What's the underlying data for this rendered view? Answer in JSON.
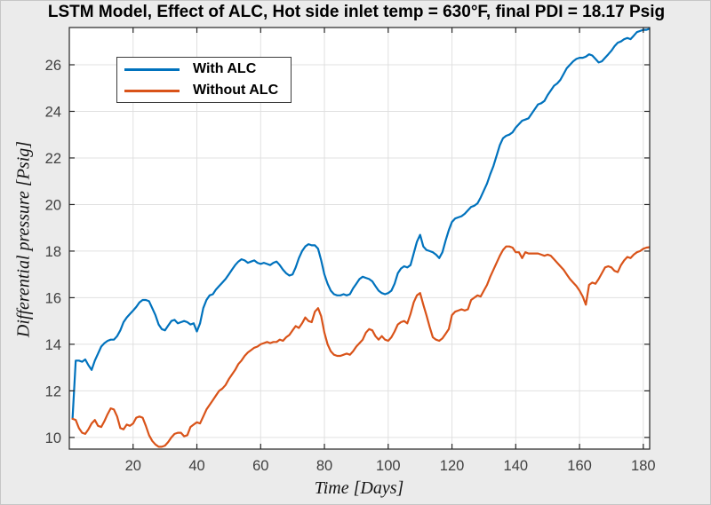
{
  "figure": {
    "background_color": "#ebebeb",
    "plot_background_color": "#ffffff",
    "grid_color": "#e0e0e0",
    "box_color": "#262626",
    "tick_label_color": "#3f3f3f"
  },
  "chart_data": {
    "type": "line",
    "title": "LSTM Model, Effect of ALC, Hot side inlet temp = 630°F, final PDI = 18.17 Psig",
    "xlabel": "Time [Days]",
    "ylabel": "Differential pressure [Psig]",
    "xlim": [
      0,
      182
    ],
    "ylim": [
      9.5,
      27.6
    ],
    "xticks": [
      20,
      40,
      60,
      80,
      100,
      120,
      140,
      160,
      180
    ],
    "yticks": [
      10,
      12,
      14,
      16,
      18,
      20,
      22,
      24,
      26
    ],
    "grid": true,
    "legend": {
      "position": "top-left",
      "border": true
    },
    "x_start_day": 1,
    "x_end_day": 182,
    "final_pdi_psig": 18.17,
    "series": [
      {
        "name": "With ALC",
        "color": "#0072BD",
        "y": [
          10.8,
          13.3,
          13.3,
          13.25,
          13.35,
          13.1,
          12.9,
          13.3,
          13.6,
          13.9,
          14.05,
          14.15,
          14.2,
          14.2,
          14.35,
          14.6,
          14.95,
          15.15,
          15.3,
          15.45,
          15.6,
          15.8,
          15.9,
          15.9,
          15.85,
          15.55,
          15.25,
          14.85,
          14.65,
          14.6,
          14.8,
          15.0,
          15.05,
          14.9,
          14.95,
          15.0,
          14.95,
          14.85,
          14.9,
          14.55,
          14.9,
          15.55,
          15.9,
          16.1,
          16.15,
          16.35,
          16.5,
          16.65,
          16.8,
          17.0,
          17.2,
          17.4,
          17.55,
          17.65,
          17.6,
          17.5,
          17.55,
          17.6,
          17.5,
          17.45,
          17.5,
          17.45,
          17.4,
          17.5,
          17.55,
          17.4,
          17.2,
          17.05,
          16.95,
          17.0,
          17.3,
          17.7,
          18.0,
          18.2,
          18.3,
          18.25,
          18.25,
          18.1,
          17.6,
          17.0,
          16.6,
          16.3,
          16.15,
          16.1,
          16.1,
          16.15,
          16.1,
          16.15,
          16.4,
          16.6,
          16.8,
          16.9,
          16.85,
          16.8,
          16.7,
          16.5,
          16.3,
          16.2,
          16.15,
          16.2,
          16.3,
          16.6,
          17.05,
          17.25,
          17.35,
          17.3,
          17.4,
          17.9,
          18.4,
          18.7,
          18.2,
          18.05,
          18.0,
          17.95,
          17.85,
          17.7,
          17.95,
          18.45,
          18.9,
          19.25,
          19.4,
          19.45,
          19.5,
          19.6,
          19.75,
          19.9,
          19.95,
          20.05,
          20.3,
          20.6,
          20.9,
          21.3,
          21.65,
          22.1,
          22.55,
          22.85,
          22.95,
          23.0,
          23.1,
          23.3,
          23.45,
          23.6,
          23.65,
          23.7,
          23.9,
          24.1,
          24.3,
          24.35,
          24.45,
          24.7,
          24.9,
          25.1,
          25.2,
          25.35,
          25.6,
          25.85,
          26.0,
          26.15,
          26.25,
          26.3,
          26.3,
          26.35,
          26.45,
          26.4,
          26.25,
          26.1,
          26.15,
          26.3,
          26.45,
          26.6,
          26.8,
          26.95,
          27.0,
          27.1,
          27.15,
          27.1,
          27.25,
          27.4,
          27.45,
          27.5,
          27.5,
          27.55
        ]
      },
      {
        "name": "Without ALC",
        "color": "#D95319",
        "y": [
          10.8,
          10.75,
          10.4,
          10.2,
          10.15,
          10.35,
          10.6,
          10.75,
          10.5,
          10.45,
          10.7,
          11.0,
          11.25,
          11.2,
          10.9,
          10.4,
          10.35,
          10.55,
          10.5,
          10.6,
          10.85,
          10.9,
          10.85,
          10.5,
          10.1,
          9.85,
          9.7,
          9.6,
          9.6,
          9.65,
          9.8,
          10.0,
          10.15,
          10.2,
          10.2,
          10.05,
          10.1,
          10.45,
          10.55,
          10.65,
          10.6,
          10.9,
          11.2,
          11.4,
          11.6,
          11.8,
          12.0,
          12.1,
          12.25,
          12.5,
          12.7,
          12.9,
          13.15,
          13.3,
          13.5,
          13.65,
          13.75,
          13.85,
          13.9,
          14.0,
          14.05,
          14.1,
          14.05,
          14.1,
          14.1,
          14.2,
          14.15,
          14.3,
          14.4,
          14.6,
          14.78,
          14.7,
          14.9,
          15.15,
          15.0,
          14.95,
          15.4,
          15.55,
          15.2,
          14.5,
          14.0,
          13.7,
          13.55,
          13.5,
          13.5,
          13.55,
          13.6,
          13.55,
          13.7,
          13.9,
          14.05,
          14.2,
          14.5,
          14.65,
          14.6,
          14.35,
          14.2,
          14.35,
          14.2,
          14.15,
          14.3,
          14.55,
          14.85,
          14.95,
          15.0,
          14.9,
          15.3,
          15.8,
          16.1,
          16.2,
          15.7,
          15.25,
          14.75,
          14.3,
          14.2,
          14.15,
          14.25,
          14.45,
          14.65,
          15.25,
          15.4,
          15.45,
          15.5,
          15.45,
          15.5,
          15.9,
          16.0,
          16.1,
          16.05,
          16.3,
          16.55,
          16.9,
          17.2,
          17.5,
          17.8,
          18.05,
          18.2,
          18.2,
          18.15,
          17.95,
          17.95,
          17.7,
          17.95,
          17.9,
          17.9,
          17.9,
          17.9,
          17.85,
          17.8,
          17.85,
          17.8,
          17.65,
          17.5,
          17.35,
          17.2,
          17.0,
          16.8,
          16.65,
          16.5,
          16.3,
          16.05,
          15.7,
          16.55,
          16.65,
          16.6,
          16.8,
          17.05,
          17.3,
          17.35,
          17.3,
          17.15,
          17.1,
          17.4,
          17.6,
          17.75,
          17.7,
          17.85,
          17.95,
          18.0,
          18.1,
          18.15,
          18.17
        ]
      }
    ]
  }
}
